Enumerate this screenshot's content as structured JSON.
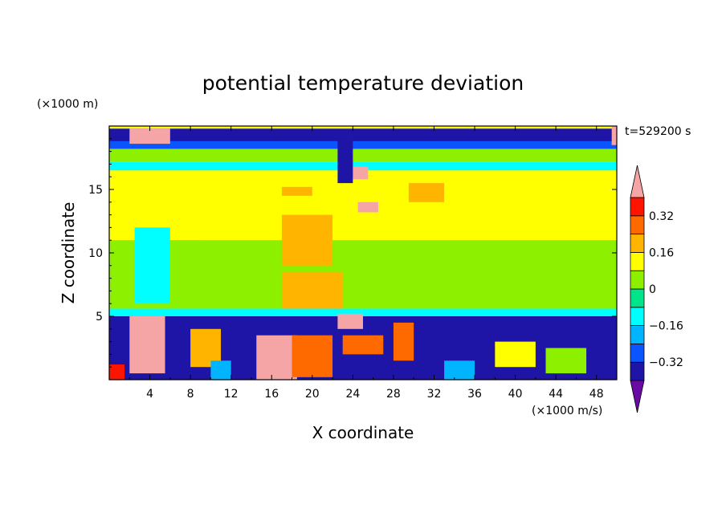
{
  "chart_data": {
    "type": "heatmap",
    "title": "potential temperature deviation",
    "xlabel": "X coordinate",
    "ylabel": "Z coordinate",
    "x_units": "(×1000 m/s)",
    "y_units": "(×1000 m)",
    "time_label": "t=529200 s",
    "xlim": [
      0,
      50
    ],
    "ylim": [
      0,
      20
    ],
    "x_ticks": [
      "4",
      "8",
      "12",
      "16",
      "20",
      "24",
      "28",
      "32",
      "36",
      "40",
      "44",
      "48"
    ],
    "y_ticks": [
      "5",
      "10",
      "15"
    ],
    "colorbar": {
      "labels": [
        "0.32",
        "0.16",
        "0",
        "−0.16",
        "−0.32"
      ],
      "label_values": [
        0.32,
        0.16,
        0,
        -0.16,
        -0.32
      ],
      "levels": [
        -0.4,
        -0.32,
        -0.24,
        -0.16,
        -0.08,
        0,
        0.08,
        0.16,
        0.24,
        0.32,
        0.4
      ],
      "colors": [
        "#6a0aa5",
        "#1e14a5",
        "#0a55ff",
        "#00b4ff",
        "#00ffff",
        "#00e58a",
        "#8cf000",
        "#ffff00",
        "#ffb400",
        "#ff6a00",
        "#ff1400",
        "#f5a5a5"
      ]
    },
    "regions": [
      {
        "x": [
          0,
          50
        ],
        "z": [
          0,
          5
        ],
        "value": -0.36
      },
      {
        "x": [
          0,
          50
        ],
        "z": [
          5,
          5.6
        ],
        "value": -0.12
      },
      {
        "x": [
          0,
          50
        ],
        "z": [
          5.6,
          16.5
        ],
        "value": 0.04
      },
      {
        "x": [
          0,
          50
        ],
        "z": [
          16.5,
          17.2
        ],
        "value": -0.12
      },
      {
        "x": [
          0,
          50
        ],
        "z": [
          17.2,
          18.2
        ],
        "value": 0.04
      },
      {
        "x": [
          0,
          50
        ],
        "z": [
          18.2,
          18.8
        ],
        "value": -0.28
      },
      {
        "x": [
          0,
          50
        ],
        "z": [
          18.8,
          19.8
        ],
        "value": -0.36
      },
      {
        "x": [
          0,
          50
        ],
        "z": [
          19.8,
          20
        ],
        "value": 0.1
      },
      {
        "x": [
          0,
          50
        ],
        "z": [
          11,
          16.5
        ],
        "value": 0.08
      },
      {
        "x": [
          5,
          9
        ],
        "z": [
          7,
          11
        ],
        "value": 0.04
      },
      {
        "x": [
          2.5,
          6
        ],
        "z": [
          6,
          12
        ],
        "value": -0.12
      },
      {
        "x": [
          17,
          23
        ],
        "z": [
          5.6,
          8.5
        ],
        "value": 0.2
      },
      {
        "x": [
          17,
          22
        ],
        "z": [
          9,
          13
        ],
        "value": 0.2
      },
      {
        "x": [
          29.5,
          33
        ],
        "z": [
          14,
          15.5
        ],
        "value": 0.2
      },
      {
        "x": [
          17,
          20
        ],
        "z": [
          14.5,
          15.2
        ],
        "value": 0.2
      },
      {
        "x": [
          2,
          6
        ],
        "z": [
          18.6,
          19.8
        ],
        "value": 0.45
      },
      {
        "x": [
          23.5,
          25.5
        ],
        "z": [
          15.8,
          16.8
        ],
        "value": 0.45
      },
      {
        "x": [
          24.5,
          26.5
        ],
        "z": [
          13.2,
          14
        ],
        "value": 0.45
      },
      {
        "x": [
          22.5,
          24
        ],
        "z": [
          15.5,
          19
        ],
        "value": -0.36
      },
      {
        "x": [
          2,
          5.5
        ],
        "z": [
          0.5,
          5
        ],
        "value": 0.45
      },
      {
        "x": [
          14.5,
          18.5
        ],
        "z": [
          0,
          3.5
        ],
        "value": 0.45
      },
      {
        "x": [
          18,
          22
        ],
        "z": [
          0.2,
          3.5
        ],
        "value": 0.28
      },
      {
        "x": [
          23,
          27
        ],
        "z": [
          2,
          3.5
        ],
        "value": 0.28
      },
      {
        "x": [
          0,
          1.5
        ],
        "z": [
          0,
          1.2
        ],
        "value": 0.36
      },
      {
        "x": [
          28,
          30
        ],
        "z": [
          1.5,
          4.5
        ],
        "value": 0.28
      },
      {
        "x": [
          8,
          11
        ],
        "z": [
          1,
          4
        ],
        "value": 0.2
      },
      {
        "x": [
          38,
          42
        ],
        "z": [
          1,
          3
        ],
        "value": 0.12
      },
      {
        "x": [
          43,
          47
        ],
        "z": [
          0.5,
          2.5
        ],
        "value": 0.04
      },
      {
        "x": [
          10,
          12
        ],
        "z": [
          0,
          1.5
        ],
        "value": -0.2
      },
      {
        "x": [
          33,
          36
        ],
        "z": [
          0,
          1.5
        ],
        "value": -0.2
      },
      {
        "x": [
          22.5,
          25
        ],
        "z": [
          4,
          5.2
        ],
        "value": 0.45
      },
      {
        "x": [
          49.5,
          50
        ],
        "z": [
          18.5,
          20
        ],
        "value": 0.45
      }
    ]
  }
}
